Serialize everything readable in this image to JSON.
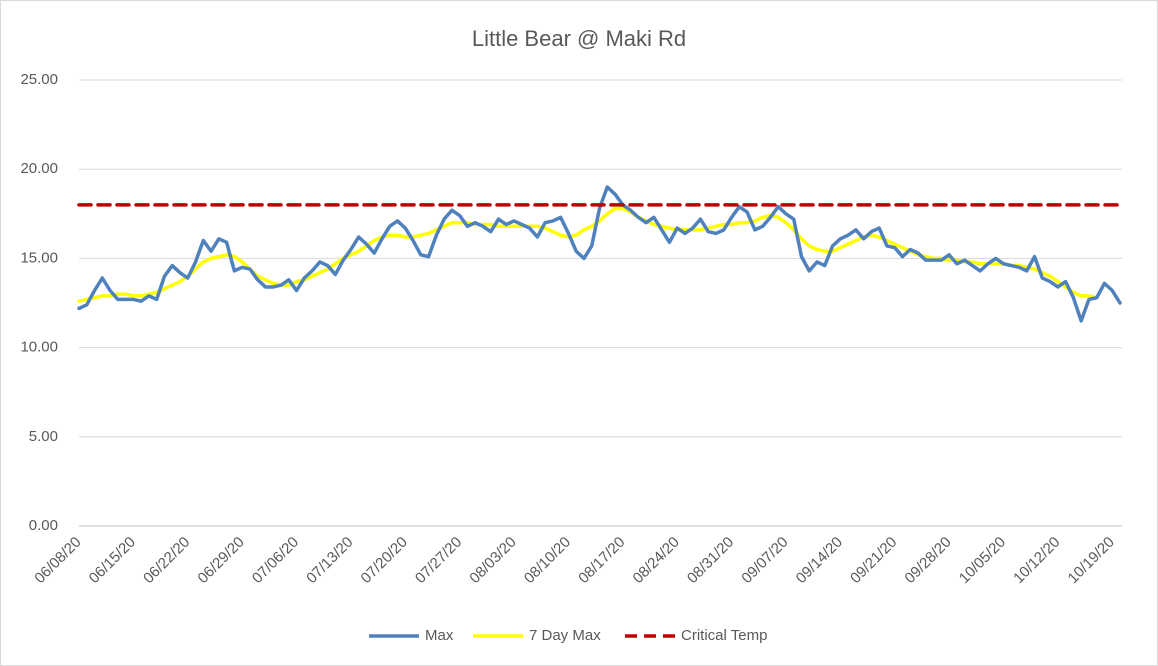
{
  "chart_data": {
    "type": "line",
    "title": "Little Bear @ Maki Rd",
    "categories": [
      "06/08/20",
      null,
      null,
      null,
      null,
      null,
      null,
      "06/15/20",
      null,
      null,
      null,
      null,
      null,
      null,
      "06/22/20",
      null,
      null,
      null,
      null,
      null,
      null,
      "06/29/20",
      null,
      null,
      null,
      null,
      null,
      null,
      "07/06/20",
      null,
      null,
      null,
      null,
      null,
      null,
      "07/13/20",
      null,
      null,
      null,
      null,
      null,
      null,
      "07/20/20",
      null,
      null,
      null,
      null,
      null,
      null,
      "07/27/20",
      null,
      null,
      null,
      null,
      null,
      null,
      "08/03/20",
      null,
      null,
      null,
      null,
      null,
      null,
      "08/10/20",
      null,
      null,
      null,
      null,
      null,
      null,
      "08/17/20",
      null,
      null,
      null,
      null,
      null,
      null,
      "08/24/20",
      null,
      null,
      null,
      null,
      null,
      null,
      "08/31/20",
      null,
      null,
      null,
      null,
      null,
      null,
      "09/07/20",
      null,
      null,
      null,
      null,
      null,
      null,
      "09/14/20",
      null,
      null,
      null,
      null,
      null,
      null,
      "09/21/20",
      null,
      null,
      null,
      null,
      null,
      null,
      "09/28/20",
      null,
      null,
      null,
      null,
      null,
      null,
      "10/05/20",
      null,
      null,
      null,
      null,
      null,
      null,
      "10/12/20",
      null,
      null,
      null,
      null,
      null,
      null,
      "10/19/20",
      null
    ],
    "series": [
      {
        "name": "Max",
        "color": "#4f81bd",
        "style": "solid",
        "values": [
          12.2,
          12.4,
          13.2,
          13.9,
          13.2,
          12.7,
          12.7,
          12.7,
          12.6,
          12.9,
          12.7,
          14.0,
          14.6,
          14.2,
          13.9,
          14.8,
          16.0,
          15.4,
          16.1,
          15.9,
          14.3,
          14.5,
          14.4,
          13.8,
          13.4,
          13.4,
          13.5,
          13.8,
          13.2,
          13.9,
          14.3,
          14.8,
          14.6,
          14.1,
          14.9,
          15.5,
          16.2,
          15.8,
          15.3,
          16.1,
          16.8,
          17.1,
          16.7,
          16.0,
          15.2,
          15.1,
          16.3,
          17.2,
          17.7,
          17.4,
          16.8,
          17.0,
          16.8,
          16.5,
          17.2,
          16.9,
          17.1,
          16.9,
          16.7,
          16.2,
          17.0,
          17.1,
          17.3,
          16.4,
          15.4,
          15.0,
          15.7,
          17.8,
          19.0,
          18.6,
          18.0,
          17.7,
          17.3,
          17.0,
          17.3,
          16.6,
          15.9,
          16.7,
          16.4,
          16.7,
          17.2,
          16.5,
          16.4,
          16.6,
          17.3,
          17.9,
          17.6,
          16.6,
          16.8,
          17.3,
          17.9,
          17.5,
          17.2,
          15.1,
          14.3,
          14.8,
          14.6,
          15.7,
          16.1,
          16.3,
          16.6,
          16.1,
          16.5,
          16.7,
          15.7,
          15.6,
          15.1,
          15.5,
          15.3,
          14.9,
          14.9,
          14.9,
          15.2,
          14.7,
          14.9,
          14.6,
          14.3,
          14.7,
          15.0,
          14.7,
          14.6,
          14.5,
          14.3,
          15.1,
          13.9,
          13.7,
          13.4,
          13.7,
          12.8,
          11.5,
          12.7,
          12.8,
          13.6,
          13.2,
          12.5
        ]
      },
      {
        "name": "7 Day Max",
        "color": "#ffff00",
        "style": "solid",
        "values": [
          12.6,
          12.7,
          12.8,
          12.9,
          12.9,
          13.0,
          13.0,
          12.9,
          12.9,
          13.0,
          13.1,
          13.3,
          13.5,
          13.7,
          14.0,
          14.4,
          14.8,
          15.0,
          15.1,
          15.2,
          15.1,
          14.8,
          14.4,
          14.0,
          13.8,
          13.6,
          13.5,
          13.5,
          13.7,
          13.8,
          14.0,
          14.2,
          14.4,
          14.7,
          15.0,
          15.2,
          15.4,
          15.7,
          16.0,
          16.2,
          16.3,
          16.3,
          16.2,
          16.2,
          16.3,
          16.4,
          16.6,
          16.8,
          17.0,
          17.0,
          17.0,
          16.9,
          16.9,
          16.9,
          16.8,
          16.8,
          16.8,
          16.8,
          16.8,
          16.8,
          16.7,
          16.5,
          16.3,
          16.2,
          16.3,
          16.6,
          16.8,
          17.1,
          17.5,
          17.8,
          17.8,
          17.6,
          17.3,
          17.1,
          16.9,
          16.8,
          16.7,
          16.6,
          16.6,
          16.6,
          16.6,
          16.7,
          16.8,
          16.9,
          16.9,
          17.0,
          17.0,
          17.1,
          17.3,
          17.4,
          17.3,
          17.0,
          16.6,
          16.1,
          15.7,
          15.5,
          15.4,
          15.4,
          15.6,
          15.8,
          16.0,
          16.2,
          16.3,
          16.2,
          16.0,
          15.8,
          15.6,
          15.4,
          15.2,
          15.1,
          15.0,
          15.0,
          14.9,
          14.9,
          14.8,
          14.8,
          14.7,
          14.7,
          14.7,
          14.7,
          14.6,
          14.6,
          14.5,
          14.4,
          14.2,
          14.0,
          13.7,
          13.4,
          13.1,
          12.9,
          12.9,
          12.8,
          null,
          null,
          null
        ]
      },
      {
        "name": "Critical Temp",
        "color": "#c00000",
        "style": "dashed",
        "values": [
          18,
          18,
          18,
          18,
          18,
          18,
          18,
          18,
          18,
          18,
          18,
          18,
          18,
          18,
          18,
          18,
          18,
          18,
          18,
          18,
          18,
          18,
          18,
          18,
          18,
          18,
          18,
          18,
          18,
          18,
          18,
          18,
          18,
          18,
          18,
          18,
          18,
          18,
          18,
          18,
          18,
          18,
          18,
          18,
          18,
          18,
          18,
          18,
          18,
          18,
          18,
          18,
          18,
          18,
          18,
          18,
          18,
          18,
          18,
          18,
          18,
          18,
          18,
          18,
          18,
          18,
          18,
          18,
          18,
          18,
          18,
          18,
          18,
          18,
          18,
          18,
          18,
          18,
          18,
          18,
          18,
          18,
          18,
          18,
          18,
          18,
          18,
          18,
          18,
          18,
          18,
          18,
          18,
          18,
          18,
          18,
          18,
          18,
          18,
          18,
          18,
          18,
          18,
          18,
          18,
          18,
          18,
          18,
          18,
          18,
          18,
          18,
          18,
          18,
          18,
          18,
          18,
          18,
          18,
          18,
          18,
          18,
          18,
          18,
          18,
          18,
          18,
          18,
          18,
          18,
          18,
          18,
          18,
          18,
          18
        ]
      }
    ],
    "ylim": [
      0,
      25
    ],
    "yticks": [
      {
        "value": 0,
        "label": "0.00"
      },
      {
        "value": 5,
        "label": "5.00"
      },
      {
        "value": 10,
        "label": "10.00"
      },
      {
        "value": 15,
        "label": "15.00"
      },
      {
        "value": 20,
        "label": "20.00"
      },
      {
        "value": 25,
        "label": "25.00"
      }
    ],
    "grid": true,
    "legend": "bottom"
  }
}
